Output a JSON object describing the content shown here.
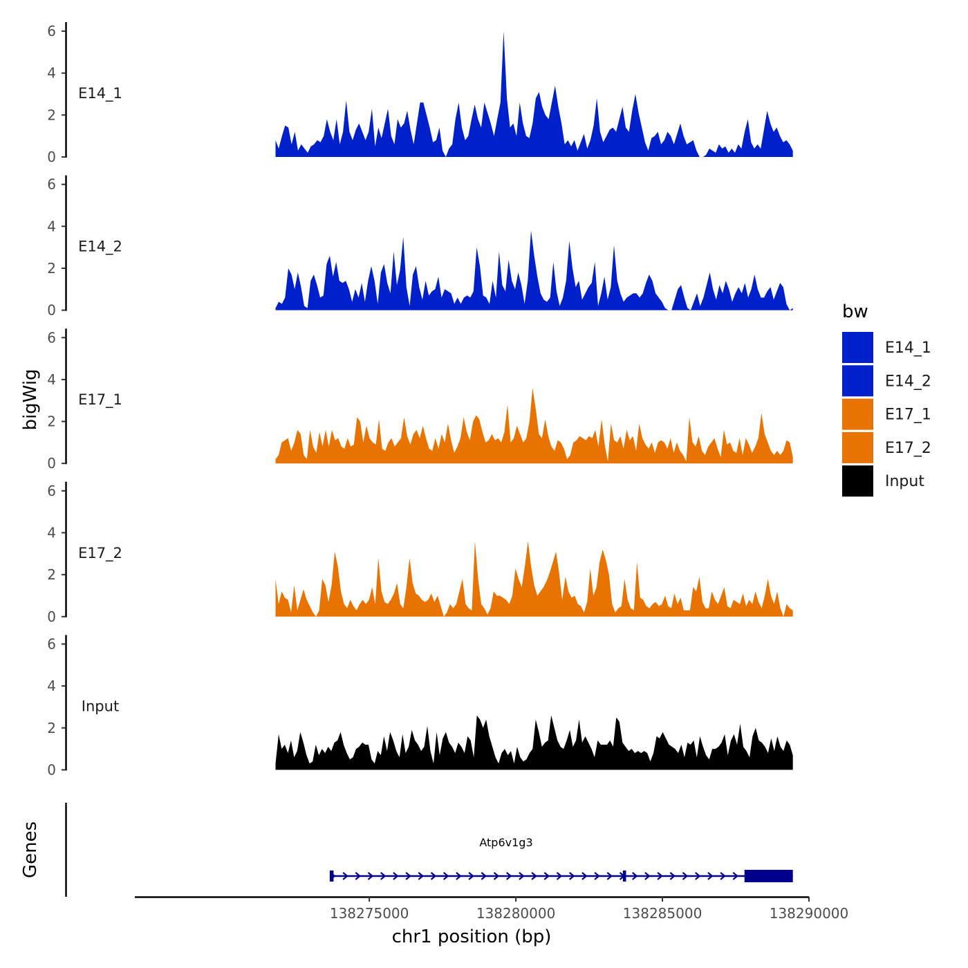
{
  "chart_data": {
    "type": "area",
    "title": "",
    "ylabel": "bigWig",
    "gene_panel_label": "Genes",
    "xlabel": "chr1 position (bp)",
    "xlim": [
      138267000,
      138290000
    ],
    "x_ticks": [
      {
        "value": 138275000,
        "label": "138275000"
      },
      {
        "value": 138280000,
        "label": "138280000"
      },
      {
        "value": 138285000,
        "label": "138285000"
      },
      {
        "value": 138290000,
        "label": "138290000"
      }
    ],
    "ylim": [
      0,
      6.2
    ],
    "y_ticks": [
      {
        "value": 0,
        "label": "0"
      },
      {
        "value": 2,
        "label": "2"
      },
      {
        "value": 4,
        "label": "4"
      },
      {
        "value": 6,
        "label": "6"
      }
    ],
    "x_start": 138271800,
    "x_end": 138289450,
    "legend": {
      "title": "bw",
      "placement": "right",
      "entries": [
        {
          "label": "E14_1",
          "color": "#0020CC"
        },
        {
          "label": "E14_2",
          "color": "#0020CC"
        },
        {
          "label": "E17_1",
          "color": "#E87300"
        },
        {
          "label": "E17_2",
          "color": "#E87300"
        },
        {
          "label": "Input",
          "color": "#000000"
        }
      ]
    },
    "series": [
      {
        "name": "E14_1",
        "color": "#0020CC",
        "values": [
          0.8,
          0.4,
          1.0,
          1.5,
          1.4,
          0.6,
          1.2,
          0.3,
          0.6,
          0.4,
          0.2,
          0.5,
          0.6,
          0.8,
          0.7,
          1.0,
          1.8,
          1.2,
          0.8,
          1.8,
          0.6,
          1.2,
          2.7,
          1.2,
          0.8,
          1.3,
          1.6,
          1.2,
          0.8,
          1.2,
          2.3,
          0.5,
          1.4,
          0.9,
          1.6,
          2.3,
          1.0,
          0.6,
          1.8,
          1.4,
          1.6,
          2.2,
          1.3,
          0.6,
          1.6,
          2.6,
          2.6,
          2.0,
          1.4,
          0.7,
          0.8,
          1.4,
          0.3,
          0.0,
          0.4,
          0.6,
          1.8,
          2.6,
          1.4,
          0.8,
          1.0,
          1.8,
          2.5,
          1.8,
          1.4,
          2.6,
          2.1,
          1.6,
          1.0,
          1.8,
          2.6,
          6.0,
          2.8,
          1.4,
          1.6,
          1.0,
          2.6,
          1.6,
          1.0,
          0.9,
          1.6,
          2.8,
          3.1,
          2.4,
          2.0,
          1.8,
          2.6,
          3.4,
          2.4,
          1.6,
          0.6,
          0.8,
          0.5,
          0.8,
          0.3,
          0.7,
          1.1,
          0.4,
          0.8,
          1.5,
          2.8,
          1.2,
          0.7,
          1.0,
          1.3,
          1.4,
          1.2,
          1.8,
          2.4,
          1.4,
          1.2,
          2.2,
          3.0,
          2.1,
          1.4,
          0.7,
          0.3,
          0.9,
          1.0,
          1.2,
          0.6,
          0.8,
          1.2,
          1.0,
          0.6,
          1.1,
          1.6,
          1.0,
          0.6,
          0.7,
          0.8,
          0.3,
          0.0,
          0.0,
          0.1,
          0.4,
          0.3,
          0.2,
          0.6,
          0.4,
          0.5,
          0.2,
          0.4,
          0.2,
          0.6,
          0.4,
          1.2,
          1.8,
          0.7,
          0.4,
          0.6,
          0.4,
          1.3,
          2.2,
          1.6,
          1.2,
          1.4,
          1.0,
          0.7,
          0.8,
          0.6,
          0.3
        ]
      },
      {
        "name": "E14_2",
        "color": "#0020CC",
        "values": [
          0.1,
          0.4,
          0.3,
          0.6,
          2.0,
          1.7,
          1.0,
          1.8,
          1.1,
          0.2,
          0.1,
          1.4,
          1.7,
          1.2,
          0.6,
          0.7,
          2.2,
          2.6,
          1.6,
          2.3,
          1.4,
          1.3,
          1.4,
          1.0,
          0.4,
          1.0,
          0.6,
          1.3,
          0.4,
          1.4,
          2.1,
          1.4,
          0.3,
          1.8,
          2.2,
          1.3,
          0.8,
          2.8,
          1.2,
          1.9,
          3.5,
          1.1,
          0.2,
          1.7,
          2.1,
          1.1,
          0.5,
          1.4,
          0.7,
          0.9,
          1.0,
          1.6,
          0.6,
          1.0,
          0.9,
          0.8,
          0.3,
          0.6,
          0.3,
          0.6,
          0.7,
          0.6,
          0.9,
          3.0,
          2.1,
          0.7,
          0.6,
          0.3,
          1.4,
          0.6,
          2.8,
          1.2,
          0.9,
          2.4,
          1.4,
          1.0,
          1.8,
          1.2,
          0.3,
          1.4,
          3.8,
          2.6,
          1.6,
          0.8,
          0.5,
          0.4,
          0.6,
          2.3,
          0.9,
          0.2,
          0.6,
          1.4,
          3.3,
          2.0,
          1.1,
          1.4,
          0.5,
          0.8,
          1.1,
          1.3,
          2.3,
          0.2,
          0.8,
          1.6,
          0.5,
          1.1,
          3.1,
          1.4,
          0.8,
          0.4,
          0.6,
          0.7,
          0.8,
          0.8,
          0.6,
          0.8,
          1.3,
          1.7,
          1.4,
          0.8,
          0.6,
          0.4,
          0.1,
          0.0,
          0.0,
          0.5,
          1.0,
          1.2,
          0.6,
          0.1,
          0.0,
          0.4,
          0.8,
          0.2,
          0.6,
          1.2,
          1.8,
          1.0,
          0.5,
          1.2,
          0.8,
          1.4,
          1.0,
          0.4,
          0.8,
          1.1,
          0.8,
          1.3,
          0.6,
          1.0,
          1.7,
          1.0,
          0.6,
          0.6,
          0.9,
          1.1,
          0.5,
          0.9,
          1.3,
          1.1,
          0.3,
          0.0,
          0.1
        ]
      },
      {
        "name": "E17_1",
        "color": "#E87300",
        "values": [
          0.2,
          0.4,
          1.0,
          1.1,
          1.2,
          0.6,
          1.0,
          1.6,
          1.4,
          0.4,
          0.2,
          1.6,
          0.8,
          0.5,
          1.5,
          0.8,
          1.6,
          0.8,
          1.6,
          1.1,
          1.2,
          0.8,
          0.7,
          1.2,
          0.8,
          0.9,
          2.2,
          2.0,
          1.0,
          1.8,
          1.2,
          1.0,
          0.9,
          2.1,
          0.7,
          0.6,
          1.0,
          1.2,
          0.8,
          1.0,
          1.2,
          2.2,
          1.3,
          0.9,
          1.4,
          1.6,
          1.2,
          1.8,
          1.2,
          0.7,
          0.6,
          1.2,
          0.7,
          1.4,
          1.0,
          1.9,
          1.1,
          0.5,
          0.8,
          1.2,
          2.2,
          1.5,
          1.1,
          2.0,
          2.3,
          2.1,
          1.5,
          1.0,
          1.1,
          1.4,
          1.1,
          1.2,
          1.0,
          1.5,
          2.8,
          1.0,
          1.2,
          1.8,
          1.4,
          1.0,
          1.2,
          2.0,
          3.6,
          2.6,
          1.4,
          1.2,
          2.1,
          1.3,
          0.8,
          0.6,
          1.1,
          1.0,
          0.7,
          0.2,
          0.4,
          1.0,
          1.1,
          1.3,
          1.2,
          1.1,
          1.3,
          1.2,
          1.6,
          0.8,
          2.1,
          0.9,
          0.1,
          1.9,
          1.1,
          1.0,
          1.3,
          0.7,
          1.6,
          1.1,
          1.3,
          0.6,
          1.9,
          1.2,
          0.9,
          0.7,
          1.0,
          0.5,
          1.0,
          1.1,
          1.0,
          0.7,
          1.2,
          0.5,
          1.0,
          0.6,
          0.4,
          0.1,
          2.2,
          1.0,
          0.8,
          1.3,
          0.6,
          0.4,
          0.8,
          1.0,
          1.2,
          0.7,
          0.3,
          1.6,
          0.9,
          1.0,
          0.6,
          0.5,
          1.2,
          0.4,
          1.2,
          0.9,
          0.5,
          0.8,
          1.2,
          2.4,
          1.4,
          1.0,
          0.6,
          0.4,
          0.6,
          0.4,
          0.6,
          1.1,
          1.0,
          0.3
        ]
      },
      {
        "name": "E17_2",
        "color": "#E87300",
        "values": [
          1.8,
          0.6,
          1.2,
          0.9,
          0.8,
          0.2,
          1.5,
          0.3,
          0.8,
          1.3,
          0.8,
          0.5,
          0.2,
          0.0,
          0.3,
          1.8,
          1.5,
          0.7,
          1.5,
          3.1,
          2.4,
          1.2,
          0.6,
          0.4,
          0.8,
          0.5,
          0.3,
          0.6,
          0.8,
          0.6,
          0.8,
          1.4,
          0.6,
          2.8,
          1.2,
          0.7,
          0.6,
          0.8,
          1.1,
          1.6,
          0.6,
          0.4,
          1.4,
          2.8,
          1.6,
          1.1,
          1.0,
          0.8,
          0.7,
          0.8,
          1.1,
          0.7,
          1.0,
          0.5,
          0.0,
          0.2,
          0.6,
          0.4,
          0.6,
          1.2,
          1.8,
          0.6,
          0.4,
          0.3,
          3.6,
          1.8,
          0.6,
          0.4,
          0.1,
          0.4,
          1.2,
          1.0,
          1.0,
          0.9,
          0.8,
          0.6,
          1.0,
          2.3,
          1.8,
          1.4,
          2.4,
          3.6,
          2.4,
          1.5,
          1.0,
          1.2,
          1.4,
          1.7,
          2.1,
          2.6,
          3.1,
          2.1,
          0.8,
          1.9,
          1.2,
          0.9,
          1.0,
          0.6,
          0.5,
          0.2,
          0.7,
          2.3,
          1.0,
          1.4,
          2.6,
          3.2,
          2.7,
          2.0,
          0.6,
          0.2,
          0.4,
          0.5,
          1.8,
          0.8,
          0.4,
          0.3,
          2.6,
          0.9,
          0.8,
          0.5,
          0.4,
          0.6,
          0.7,
          0.5,
          0.6,
          1.0,
          0.5,
          0.4,
          1.1,
          0.6,
          0.9,
          0.3,
          0.3,
          0.3,
          1.4,
          1.2,
          1.9,
          0.7,
          0.4,
          0.4,
          1.2,
          0.8,
          0.6,
          1.0,
          1.4,
          0.5,
          0.4,
          0.8,
          0.7,
          0.6,
          1.1,
          0.5,
          0.8,
          0.6,
          1.2,
          0.7,
          0.4,
          1.0,
          1.8,
          1.0,
          0.6,
          1.2,
          0.4,
          0.0,
          0.6,
          0.4,
          0.3
        ]
      },
      {
        "name": "Input",
        "color": "#000000",
        "values": [
          0.3,
          1.7,
          1.0,
          1.2,
          0.8,
          1.4,
          0.6,
          0.9,
          1.8,
          1.3,
          0.7,
          0.3,
          0.4,
          1.2,
          0.7,
          1.0,
          0.8,
          1.1,
          0.9,
          1.3,
          1.4,
          1.8,
          1.2,
          0.8,
          0.5,
          0.6,
          1.0,
          1.1,
          1.3,
          1.2,
          1.2,
          0.5,
          0.3,
          0.9,
          0.7,
          1.6,
          0.9,
          1.8,
          1.4,
          0.9,
          0.6,
          1.7,
          0.8,
          1.1,
          1.9,
          1.4,
          1.2,
          0.9,
          1.1,
          2.1,
          0.9,
          0.3,
          1.8,
          0.7,
          1.5,
          1.8,
          1.3,
          1.1,
          0.8,
          1.3,
          1.1,
          0.8,
          1.6,
          1.4,
          0.6,
          2.6,
          2.4,
          2.0,
          2.4,
          1.6,
          1.1,
          0.6,
          0.3,
          0.8,
          1.0,
          0.7,
          0.9,
          0.3,
          1.1,
          0.6,
          0.4,
          0.5,
          0.8,
          1.0,
          2.4,
          1.8,
          1.1,
          1.3,
          1.4,
          2.6,
          2.0,
          1.4,
          1.1,
          1.0,
          1.4,
          1.9,
          1.1,
          1.4,
          2.4,
          1.3,
          1.6,
          1.3,
          1.0,
          0.6,
          1.4,
          1.2,
          1.2,
          1.2,
          1.4,
          1.1,
          2.5,
          2.3,
          1.3,
          1.1,
          0.9,
          1.0,
          0.8,
          0.9,
          0.8,
          0.9,
          0.8,
          0.4,
          0.8,
          1.6,
          1.5,
          1.8,
          1.5,
          1.2,
          1.1,
          1.0,
          0.8,
          1.2,
          0.6,
          1.3,
          1.2,
          1.4,
          0.6,
          1.6,
          1.1,
          0.7,
          0.5,
          1.0,
          1.0,
          1.1,
          1.3,
          1.7,
          0.7,
          1.4,
          1.7,
          1.2,
          2.2,
          1.1,
          0.9,
          0.6,
          1.6,
          2.0,
          1.4,
          1.3,
          1.1,
          0.8,
          1.5,
          0.9,
          1.6,
          1.1,
          0.9,
          1.4,
          1.2,
          0.7
        ]
      }
    ],
    "gene": {
      "name": "Atp6v1g3",
      "start": 138273650,
      "end": 138289450,
      "strand": "+",
      "color": "#00008B",
      "exons": [
        {
          "start": 138273650,
          "end": 138273780
        },
        {
          "start": 138283650,
          "end": 138283760
        },
        {
          "start": 138287800,
          "end": 138289450
        }
      ]
    }
  }
}
